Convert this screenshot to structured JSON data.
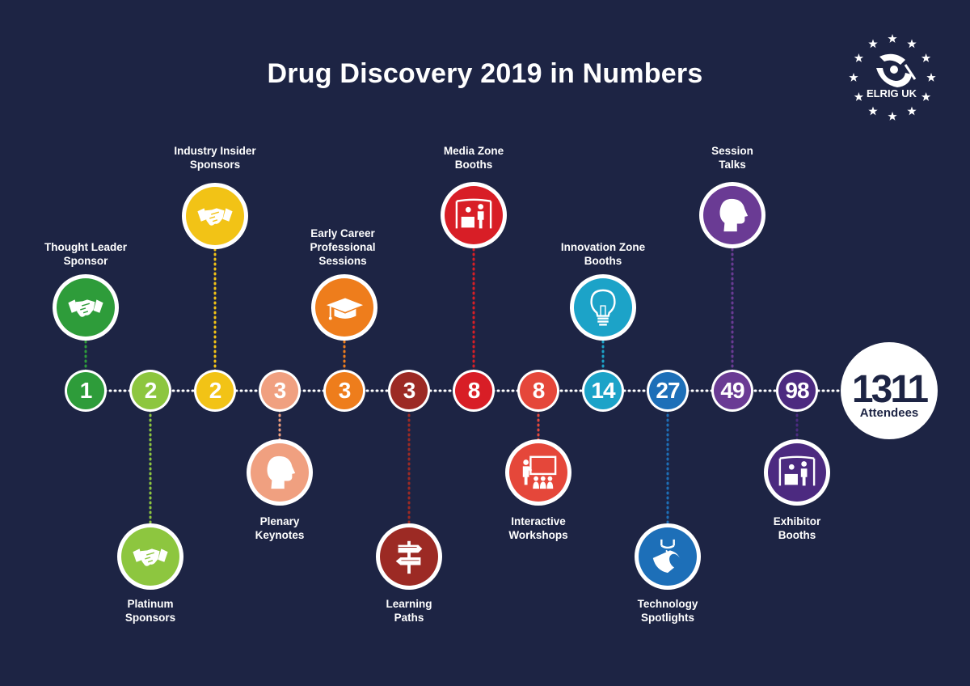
{
  "title": "Drug Discovery 2019 in Numbers",
  "logo": {
    "text": "ELRIG UK",
    "icon": "elrig-star-logo-icon"
  },
  "line_color": "#ffffff",
  "items": [
    {
      "value": "1",
      "label": "Thought Leader\nSponsor",
      "color": "#2e9c3a",
      "icon": "handshake-icon",
      "icon_side": "top"
    },
    {
      "value": "2",
      "label": "Platinum\nSponsors",
      "color": "#8dc63f",
      "icon": "handshake-icon",
      "icon_side": "bottom"
    },
    {
      "value": "2",
      "label": "Industry Insider\nSponsors",
      "color": "#f2c316",
      "icon": "handshake-icon",
      "icon_side": "top"
    },
    {
      "value": "3",
      "label": "Plenary\nKeynotes",
      "color": "#f0a080",
      "icon": "head-profile-icon",
      "icon_side": "bottom"
    },
    {
      "value": "3",
      "label": "Early Career\nProfessional\nSessions",
      "color": "#ee7d1c",
      "icon": "graduation-cap-icon",
      "icon_side": "top"
    },
    {
      "value": "3",
      "label": "Learning\nPaths",
      "color": "#9c2a24",
      "icon": "signpost-icon",
      "icon_side": "bottom"
    },
    {
      "value": "8",
      "label": "Media Zone\nBooths",
      "color": "#d81e26",
      "icon": "booth-icon",
      "icon_side": "top"
    },
    {
      "value": "8",
      "label": "Interactive\nWorkshops",
      "color": "#e5473a",
      "icon": "workshop-icon",
      "icon_side": "bottom"
    },
    {
      "value": "14",
      "label": "Innovation Zone\nBooths",
      "color": "#1ca3c8",
      "icon": "lightbulb-icon",
      "icon_side": "top"
    },
    {
      "value": "27",
      "label": "Technology\nSpotlights",
      "color": "#1d6fb8",
      "icon": "spotlight-icon",
      "icon_side": "bottom"
    },
    {
      "value": "49",
      "label": "Session\nTalks",
      "color": "#6a3b94",
      "icon": "head-profile-icon",
      "icon_side": "top"
    },
    {
      "value": "98",
      "label": "Exhibitor\nBooths",
      "color": "#4c2a80",
      "icon": "booth-icon",
      "icon_side": "bottom"
    }
  ],
  "final": {
    "value": "1311",
    "label": "Attendees",
    "color": "#ffffff",
    "text_color": "#1d2444"
  }
}
